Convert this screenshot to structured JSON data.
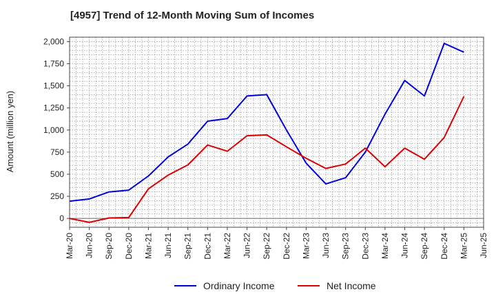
{
  "chart_data": {
    "type": "line",
    "title": "[4957]  Trend of 12-Month Moving Sum of Incomes",
    "xlabel": "",
    "ylabel": "Amount (million yen)",
    "ylim": [
      -100,
      2050
    ],
    "yticks": [
      0,
      250,
      500,
      750,
      1000,
      1250,
      1500,
      1750,
      2000
    ],
    "ytick_labels": [
      "0",
      "250",
      "500",
      "750",
      "1,000",
      "1,250",
      "1,500",
      "1,750",
      "2,000"
    ],
    "categories": [
      "Mar-20",
      "Jun-20",
      "Sep-20",
      "Dec-20",
      "Mar-21",
      "Jun-21",
      "Sep-21",
      "Dec-21",
      "Mar-22",
      "Jun-22",
      "Sep-22",
      "Dec-22",
      "Mar-23",
      "Jun-23",
      "Sep-23",
      "Dec-23",
      "Mar-24",
      "Jun-24",
      "Sep-24",
      "Dec-24",
      "Mar-25",
      "Jun-25"
    ],
    "series": [
      {
        "name": "Ordinary Income",
        "color": "#0000dd",
        "values": [
          195,
          220,
          300,
          320,
          480,
          695,
          840,
          1100,
          1130,
          1385,
          1400,
          1000,
          625,
          390,
          460,
          750,
          1180,
          1560,
          1385,
          1980,
          1880,
          null
        ]
      },
      {
        "name": "Net Income",
        "color": "#dd0000",
        "values": [
          0,
          -45,
          5,
          10,
          335,
          490,
          605,
          830,
          760,
          935,
          945,
          810,
          680,
          565,
          615,
          795,
          585,
          795,
          670,
          915,
          1380,
          null
        ]
      }
    ],
    "grid": true,
    "legend": "bottom-center"
  }
}
